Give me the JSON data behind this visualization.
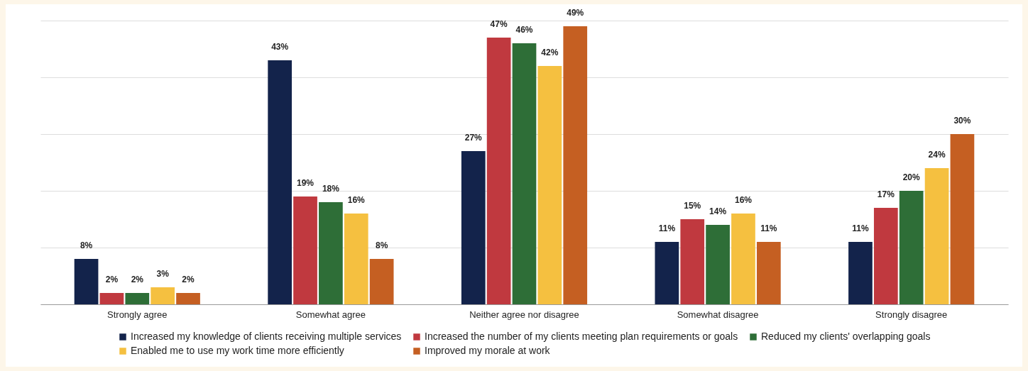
{
  "chart_data": {
    "type": "bar",
    "categories": [
      "Strongly agree",
      "Somewhat agree",
      "Neither agree nor disagree",
      "Somewhat disagree",
      "Strongly disagree"
    ],
    "series": [
      {
        "name": "Increased my knowledge of clients receiving multiple services",
        "color": "#13234b",
        "values": [
          8,
          43,
          27,
          11,
          11
        ],
        "value_labels": [
          "8%",
          "43%",
          "27%",
          "11%",
          "11%"
        ]
      },
      {
        "name": "Increased the number of my clients meeting plan requirements or goals",
        "color": "#c0393f",
        "values": [
          2,
          19,
          47,
          15,
          17
        ],
        "value_labels": [
          "2%",
          "19%",
          "47%",
          "15%",
          "17%"
        ]
      },
      {
        "name": "Reduced my clients' overlapping goals",
        "color": "#2e6e37",
        "values": [
          2,
          18,
          46,
          14,
          20
        ],
        "value_labels": [
          "2%",
          "18%",
          "46%",
          "14%",
          "20%"
        ]
      },
      {
        "name": "Enabled me to use my work time more efficiently",
        "color": "#f5c040",
        "values": [
          3,
          16,
          42,
          16,
          24
        ],
        "value_labels": [
          "3%",
          "16%",
          "42%",
          "16%",
          "24%"
        ]
      },
      {
        "name": "Improved my morale at work",
        "color": "#c55f22",
        "values": [
          2,
          8,
          49,
          11,
          30
        ],
        "value_labels": [
          "2%",
          "8%",
          "49%",
          "11%",
          "30%"
        ]
      }
    ],
    "grid": "y",
    "tick_labels": "x",
    "legend": "bottom"
  }
}
